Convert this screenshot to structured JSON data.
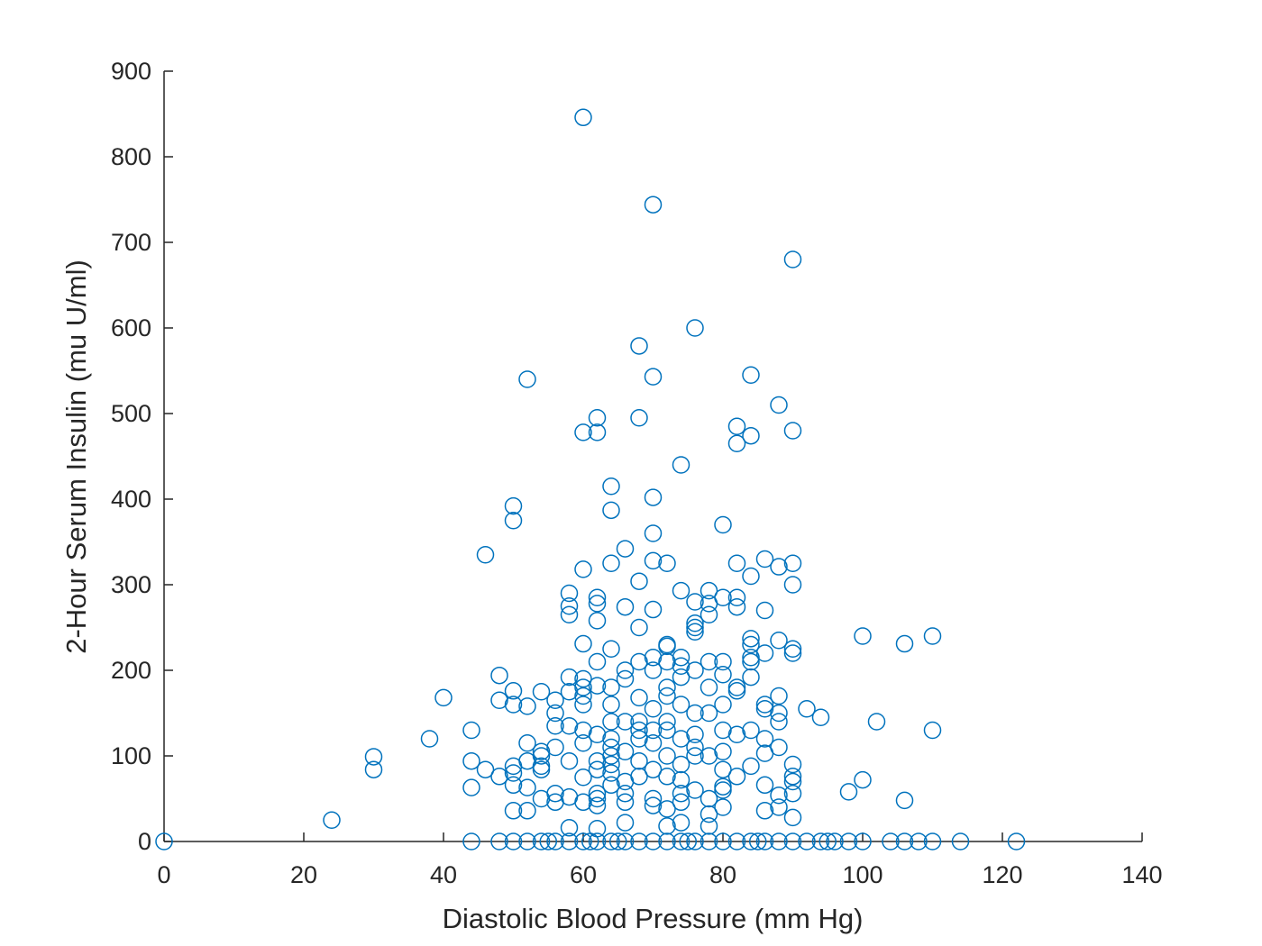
{
  "chart_data": {
    "type": "scatter",
    "x_label": "Diastolic Blood Pressure (mm Hg)",
    "y_label": "2-Hour Serum Insulin (mu U/ml)",
    "color": "#0072bd",
    "xlim": [
      0,
      140
    ],
    "xticks": [
      0,
      20,
      40,
      60,
      80,
      100,
      120,
      140
    ],
    "ylim": [
      0,
      900
    ],
    "yticks": [
      0,
      100,
      200,
      300,
      400,
      500,
      600,
      700,
      800,
      900
    ],
    "x": [
      0,
      44,
      48,
      50,
      52,
      54,
      55,
      56,
      58,
      60,
      61,
      62,
      64,
      65,
      66,
      68,
      70,
      72,
      74,
      75,
      76,
      78,
      80,
      82,
      84,
      85,
      86,
      88,
      90,
      92,
      94,
      95,
      96,
      98,
      100,
      104,
      106,
      108,
      110,
      114,
      122,
      60,
      70,
      90,
      76,
      68,
      52,
      70,
      84,
      88,
      62,
      68,
      60,
      62,
      82,
      82,
      84,
      90,
      74,
      64,
      70,
      50,
      64,
      50,
      80,
      70,
      66,
      46,
      82,
      64,
      72,
      70,
      86,
      90,
      84,
      88,
      60,
      68,
      90,
      58,
      74,
      78,
      62,
      80,
      82,
      58,
      62,
      66,
      70,
      76,
      78,
      82,
      86,
      58,
      62,
      78,
      76,
      76,
      76,
      68,
      100,
      110,
      106,
      84,
      84,
      88,
      60,
      72,
      72,
      64,
      90,
      90,
      86,
      84,
      84,
      70,
      74,
      62,
      68,
      72,
      78,
      80,
      74,
      66,
      70,
      76,
      80,
      48,
      58,
      60,
      66,
      74,
      84,
      60,
      62,
      64,
      72,
      78,
      82,
      82,
      50,
      54,
      58,
      60,
      72,
      88,
      68,
      40,
      48,
      56,
      60,
      64,
      80,
      86,
      50,
      52,
      86,
      92,
      76,
      56,
      88,
      94,
      64,
      102,
      66,
      88,
      56,
      58,
      60,
      68,
      72,
      44,
      110,
      80,
      84,
      62,
      76,
      82,
      68,
      38,
      64,
      74,
      86,
      52,
      60,
      70,
      56,
      88,
      54,
      66,
      80,
      86,
      30,
      54,
      64,
      72,
      76,
      78,
      44,
      52,
      58,
      62,
      68,
      90,
      50,
      54,
      64,
      74,
      84,
      30,
      46,
      54,
      62,
      70,
      80,
      48,
      50,
      64,
      68,
      72,
      82,
      90,
      60,
      66,
      74,
      100,
      90,
      44,
      50,
      52,
      64,
      80,
      86,
      98,
      62,
      66,
      74,
      90,
      56,
      58,
      62,
      70,
      78,
      88,
      106,
      54,
      56,
      60,
      66,
      74,
      62,
      70,
      80,
      88,
      50,
      52,
      72,
      86,
      78,
      90,
      24,
      74,
      66,
      72,
      58,
      62,
      78,
      80,
      76,
      70,
      68,
      64,
      74,
      70,
      72,
      76,
      78
    ],
    "values": [
      0,
      0,
      0,
      0,
      0,
      0,
      0,
      0,
      0,
      0,
      0,
      0,
      0,
      0,
      0,
      0,
      0,
      0,
      0,
      0,
      0,
      0,
      0,
      0,
      0,
      0,
      0,
      0,
      0,
      0,
      0,
      0,
      0,
      0,
      0,
      0,
      0,
      0,
      0,
      0,
      0,
      846,
      744,
      680,
      600,
      579,
      540,
      543,
      545,
      510,
      495,
      495,
      478,
      478,
      485,
      465,
      474,
      480,
      440,
      415,
      402,
      392,
      387,
      375,
      370,
      360,
      342,
      335,
      325,
      325,
      325,
      328,
      330,
      325,
      310,
      321,
      318,
      304,
      300,
      290,
      293,
      293,
      285,
      285,
      285,
      275,
      278,
      274,
      271,
      280,
      278,
      274,
      270,
      265,
      258,
      265,
      255,
      250,
      245,
      250,
      240,
      240,
      231,
      237,
      230,
      235,
      231,
      230,
      228,
      225,
      225,
      220,
      220,
      215,
      210,
      215,
      215,
      210,
      210,
      210,
      210,
      210,
      205,
      200,
      200,
      200,
      195,
      194,
      192,
      190,
      190,
      192,
      192,
      180,
      182,
      180,
      180,
      180,
      180,
      176,
      176,
      175,
      175,
      170,
      170,
      170,
      168,
      168,
      165,
      165,
      160,
      160,
      160,
      160,
      160,
      158,
      155,
      155,
      150,
      150,
      150,
      145,
      140,
      140,
      140,
      140,
      135,
      135,
      130,
      130,
      130,
      130,
      130,
      130,
      130,
      125,
      125,
      125,
      120,
      120,
      120,
      120,
      120,
      115,
      115,
      115,
      110,
      110,
      105,
      105,
      105,
      103,
      99,
      100,
      100,
      100,
      100,
      100,
      94,
      94,
      94,
      94,
      94,
      90,
      88,
      88,
      90,
      90,
      88,
      84,
      84,
      84,
      84,
      84,
      84,
      76,
      80,
      80,
      76,
      76,
      76,
      76,
      75,
      70,
      72,
      72,
      70,
      63,
      66,
      63,
      66,
      64,
      66,
      58,
      56,
      56,
      56,
      56,
      56,
      52,
      50,
      50,
      50,
      54,
      48,
      50,
      46,
      46,
      46,
      46,
      42,
      42,
      40,
      40,
      36,
      36,
      38,
      36,
      32,
      28,
      25,
      22,
      22,
      18,
      16,
      15,
      18,
      60,
      60,
      130,
      140,
      110,
      160,
      155,
      140,
      110,
      150
    ]
  }
}
